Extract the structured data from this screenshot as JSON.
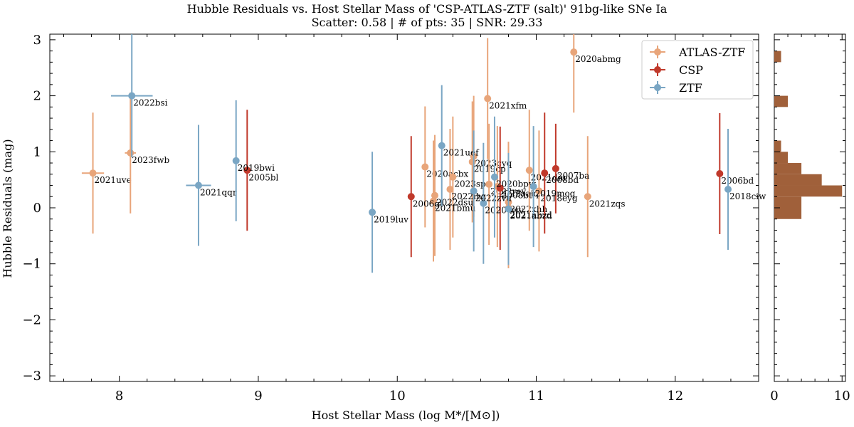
{
  "chart_data": {
    "type": "scatter",
    "title": "Hubble Residuals vs. Host Stellar Mass of 'CSP-ATLAS-ZTF (salt)' 91bg-like SNe Ia",
    "subtitle": "Scatter: 0.58 | # of pts: 35 | SNR: 29.33",
    "xlabel": "Host Stellar Mass (log M*/[M⊙])",
    "ylabel": "Hubble Residuals (mag)",
    "xlim": [
      7.5,
      12.6
    ],
    "ylim": [
      -3.1,
      3.1
    ],
    "xticks": [
      "8",
      "9",
      "10",
      "11",
      "12"
    ],
    "yticks": [
      "−3",
      "−2",
      "−1",
      "0",
      "1",
      "2",
      "3"
    ],
    "legend_position": "top-right",
    "series": [
      {
        "name": "ATLAS-ZTF",
        "color": "#e8a57a",
        "points": [
          {
            "label": "2021uve",
            "x": 7.81,
            "y": 0.62,
            "xerr": 0.08,
            "yerr": 1.08
          },
          {
            "label": "2023fwb",
            "x": 8.08,
            "y": 0.98,
            "xerr": 0.04,
            "yerr": 1.08
          },
          {
            "label": "2020acbx",
            "x": 10.2,
            "y": 0.73,
            "xerr": 0,
            "yerr": 1.08
          },
          {
            "label": "2023cyq",
            "x": 10.55,
            "y": 0.92,
            "xerr": 0,
            "yerr": 1.08
          },
          {
            "label": "2019cp",
            "x": 10.54,
            "y": 0.82,
            "xerr": 0,
            "yerr": 1.08
          },
          {
            "label": "2021xfm",
            "x": 10.65,
            "y": 1.95,
            "xerr": 0,
            "yerr": 1.08
          },
          {
            "label": "2020abmg",
            "x": 11.27,
            "y": 2.78,
            "xerr": 0,
            "yerr": 1.08
          },
          {
            "label": "2023sps",
            "x": 10.4,
            "y": 0.55,
            "xerr": 0,
            "yerr": 1.08
          },
          {
            "label": "2022rey",
            "x": 10.66,
            "y": 0.42,
            "xerr": 0,
            "yerr": 1.08
          },
          {
            "label": "2022aaiq",
            "x": 10.72,
            "y": 0.38,
            "xerr": 0,
            "yerr": 1.08
          },
          {
            "label": "2022ihz",
            "x": 10.38,
            "y": 0.33,
            "xerr": 0,
            "yerr": 1.08
          },
          {
            "label": "2021bmu",
            "x": 10.26,
            "y": 0.12,
            "xerr": 0,
            "yerr": 1.08
          },
          {
            "label": "2022dsu",
            "x": 10.27,
            "y": 0.22,
            "xerr": 0,
            "yerr": 1.08
          },
          {
            "label": "2022xhh",
            "x": 10.8,
            "y": 0.1,
            "xerr": 0,
            "yerr": 1.08
          },
          {
            "label": "2021abzd",
            "x": 10.8,
            "y": 0.0,
            "xerr": 0,
            "yerr": 1.08
          },
          {
            "label": "2021zqs",
            "x": 11.37,
            "y": 0.2,
            "xerr": 0,
            "yerr": 1.08
          },
          {
            "label": "2021diu",
            "x": 10.95,
            "y": 0.67,
            "xerr": 0,
            "yerr": 1.08
          },
          {
            "label": "2018eyg",
            "x": 11.02,
            "y": 0.3,
            "xerr": 0,
            "yerr": 1.08
          }
        ]
      },
      {
        "name": "CSP",
        "color": "#c0392b",
        "points": [
          {
            "label": "2005bl",
            "x": 8.92,
            "y": 0.67,
            "xerr": 0,
            "yerr": 1.08
          },
          {
            "label": "2006gt",
            "x": 10.1,
            "y": 0.2,
            "xerr": 0,
            "yerr": 1.08
          },
          {
            "label": "2007ba",
            "x": 11.14,
            "y": 0.7,
            "xerr": 0,
            "yerr": 0.8
          },
          {
            "label": "2008bd",
            "x": 11.06,
            "y": 0.62,
            "xerr": 0,
            "yerr": 1.08
          },
          {
            "label": "2006bd",
            "x": 12.32,
            "y": 0.61,
            "xerr": 0,
            "yerr": 1.08
          },
          {
            "label": "2008bt",
            "x": 10.74,
            "y": 0.35,
            "xerr": 0,
            "yerr": 1.1
          }
        ]
      },
      {
        "name": "ZTF",
        "color": "#7aa6c4",
        "points": [
          {
            "label": "2022bsi",
            "x": 8.09,
            "y": 2.0,
            "xerr": 0.15,
            "yerr": 1.1
          },
          {
            "label": "2021qqr",
            "x": 8.57,
            "y": 0.4,
            "xerr": 0.09,
            "yerr": 1.08
          },
          {
            "label": "2019bwi",
            "x": 8.84,
            "y": 0.84,
            "xerr": 0,
            "yerr": 1.08
          },
          {
            "label": "2019luv",
            "x": 9.82,
            "y": -0.08,
            "xerr": 0,
            "yerr": 1.08
          },
          {
            "label": "2021uef",
            "x": 10.32,
            "y": 1.11,
            "xerr": 0,
            "yerr": 1.08
          },
          {
            "label": "2020vwv",
            "x": 10.62,
            "y": 0.08,
            "xerr": 0,
            "yerr": 1.08
          },
          {
            "label": "2022zvu",
            "x": 10.55,
            "y": 0.3,
            "xerr": 0,
            "yerr": 1.08
          },
          {
            "label": "2020bpw",
            "x": 10.7,
            "y": 0.55,
            "xerr": 0,
            "yerr": 1.08
          },
          {
            "label": "2019moq",
            "x": 10.98,
            "y": 0.38,
            "xerr": 0,
            "yerr": 1.08
          },
          {
            "label": "2021abzd-z",
            "x": 10.8,
            "y": -0.02,
            "xerr": 0,
            "yerr": 1.0
          },
          {
            "label": "2018ciw",
            "x": 12.38,
            "y": 0.33,
            "xerr": 0,
            "yerr": 1.08
          }
        ]
      }
    ],
    "histogram": {
      "orientation": "horizontal",
      "color": "#a0603a",
      "xticks": [
        "0",
        "10"
      ],
      "xmax": 10.5,
      "bins": [
        {
          "y0": 2.6,
          "y1": 2.8,
          "count": 1
        },
        {
          "y0": 1.8,
          "y1": 2.0,
          "count": 2
        },
        {
          "y0": 1.0,
          "y1": 1.2,
          "count": 1
        },
        {
          "y0": 0.8,
          "y1": 1.0,
          "count": 2
        },
        {
          "y0": 0.6,
          "y1": 0.8,
          "count": 4
        },
        {
          "y0": 0.4,
          "y1": 0.6,
          "count": 7
        },
        {
          "y0": 0.2,
          "y1": 0.4,
          "count": 10
        },
        {
          "y0": 0.0,
          "y1": 0.2,
          "count": 4
        },
        {
          "y0": -0.2,
          "y1": 0.0,
          "count": 4
        }
      ]
    }
  }
}
